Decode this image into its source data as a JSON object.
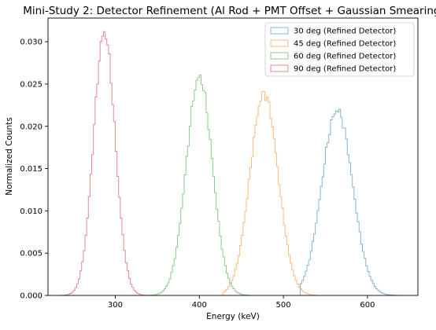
{
  "chart_data": {
    "type": "step-histogram",
    "title": "Mini-Study 2: Detector Refinement (Al Rod + PMT Offset + Gaussian Smearing)",
    "xlabel": "Energy (keV)",
    "ylabel": "Normalized Counts",
    "xlim": [
      220,
      660
    ],
    "ylim": [
      0,
      0.0328
    ],
    "xticks": [
      300,
      400,
      500,
      600
    ],
    "yticks": [
      0.0,
      0.005,
      0.01,
      0.015,
      0.02,
      0.025,
      0.03
    ],
    "ytick_labels": [
      "0.000",
      "0.005",
      "0.010",
      "0.015",
      "0.020",
      "0.025",
      "0.030"
    ],
    "grid": false,
    "legend_position": "upper right",
    "bin_width_kev": 2,
    "series": [
      {
        "name": "30 deg (Refined Detector)",
        "color": "#1f77b4",
        "x_range": [
          520,
          640
        ],
        "mean": 564,
        "sigma": 18.3,
        "peak": 0.0219
      },
      {
        "name": "45 deg (Refined Detector)",
        "color": "#ff7f0e",
        "x_range": [
          428,
          540
        ],
        "mean": 477,
        "sigma": 16.7,
        "peak": 0.0239
      },
      {
        "name": "60 deg (Refined Detector)",
        "color": "#2ca02c",
        "x_range": [
          340,
          460
        ],
        "mean": 400,
        "sigma": 15.5,
        "peak": 0.0258
      },
      {
        "name": "90 deg (Refined Detector)",
        "color": "#d62728",
        "x_range": [
          232,
          345
        ],
        "mean": 287,
        "sigma": 12.8,
        "peak": 0.0311
      }
    ]
  }
}
